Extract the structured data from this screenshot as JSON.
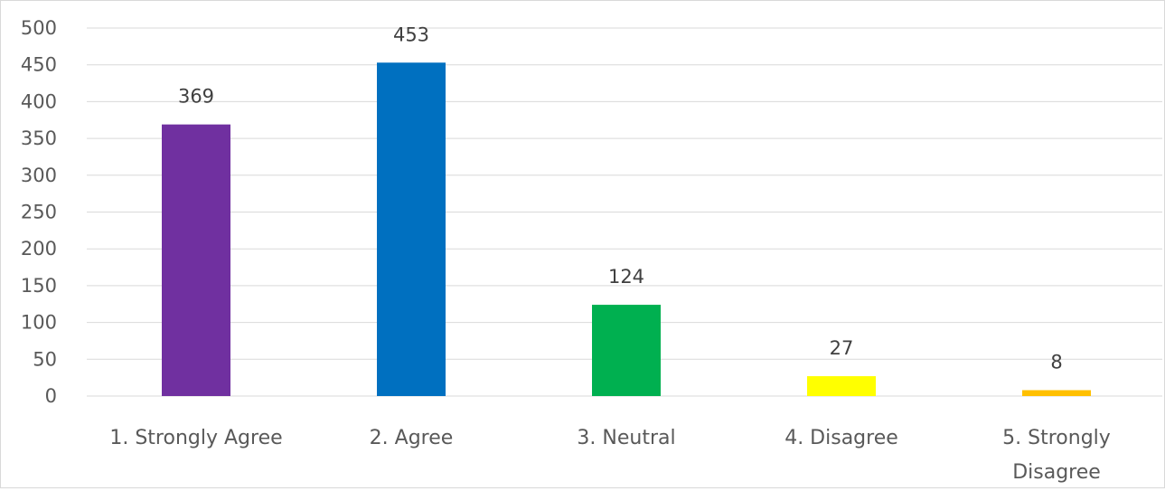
{
  "chart_data": {
    "type": "bar",
    "title": "",
    "xlabel": "",
    "ylabel": "",
    "categories": [
      "1. Strongly Agree",
      "2. Agree",
      "3. Neutral",
      "4. Disagree",
      "5. Strongly Disagree"
    ],
    "category_lines": [
      [
        "1. Strongly Agree"
      ],
      [
        "2. Agree"
      ],
      [
        "3. Neutral"
      ],
      [
        "4. Disagree"
      ],
      [
        "5. Strongly",
        "Disagree"
      ]
    ],
    "values": [
      369,
      453,
      124,
      27,
      8
    ],
    "data_labels": [
      "369",
      "453",
      "124",
      "27",
      "8"
    ],
    "colors": [
      "#7030A0",
      "#0070C0",
      "#00B050",
      "#FFFF00",
      "#FFC000"
    ],
    "ylim": [
      0,
      500
    ],
    "yticks": [
      0,
      50,
      100,
      150,
      200,
      250,
      300,
      350,
      400,
      450,
      500
    ],
    "grid": true,
    "legend": "none"
  }
}
